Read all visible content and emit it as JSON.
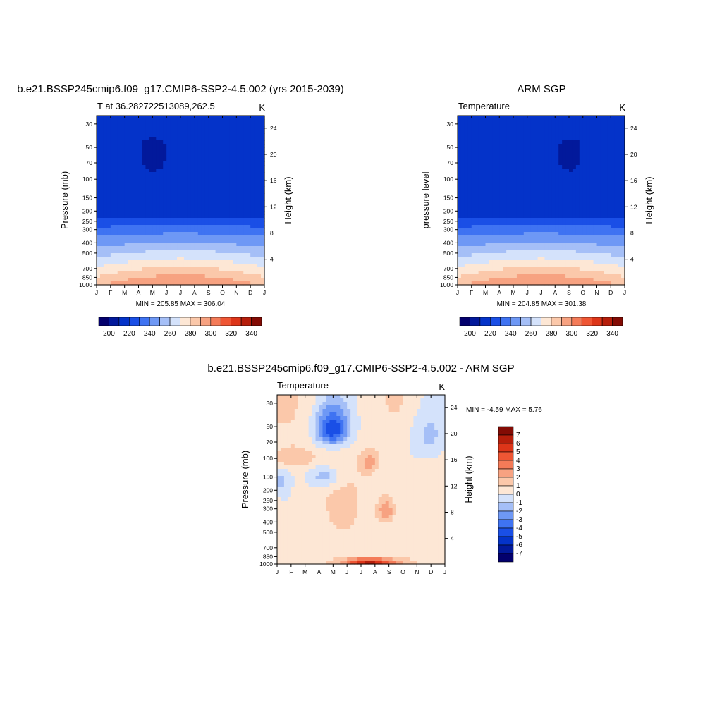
{
  "colors": {
    "temperature_scale": [
      "#03006d",
      "#02199b",
      "#0433c9",
      "#1a4fe6",
      "#3f73f2",
      "#6e98f5",
      "#a5bff7",
      "#d4e2fb",
      "#fde7d5",
      "#fbc8aa",
      "#f7a281",
      "#f47b58",
      "#ef5634",
      "#dd3519",
      "#b61e0b",
      "#830b04"
    ],
    "difference_scale": [
      "#03006d",
      "#02199b",
      "#0433c9",
      "#1a4fe6",
      "#3f73f2",
      "#6e98f5",
      "#a5bff7",
      "#d4e2fb",
      "#fde7d5",
      "#fbc8aa",
      "#f7a281",
      "#f47b58",
      "#ef5634",
      "#dd3519",
      "#b61e0b",
      "#830b04"
    ],
    "axis": "#000000",
    "background": "#ffffff"
  },
  "chart_data": [
    {
      "type": "contour",
      "title": "b.e21.BSSP245cmip6.f09_g17.CMIP6-SSP2-4.5.002 (yrs 2015-2039)",
      "left_string": "T at 36.282722513089,262.5",
      "right_string": "K",
      "xlabel": "",
      "ylabel": "Pressure (mb)",
      "ylabel_right": "Height (km)",
      "x_ticks": [
        "J",
        "F",
        "M",
        "A",
        "M",
        "J",
        "J",
        "A",
        "S",
        "O",
        "N",
        "D",
        "J"
      ],
      "y_ticks": [
        30,
        50,
        70,
        100,
        150,
        200,
        250,
        300,
        400,
        500,
        700,
        850,
        1000
      ],
      "y_ticks_right": [
        24,
        20,
        16,
        12,
        8,
        4
      ],
      "ylim": [
        1000,
        25
      ],
      "min_max_text": "MIN = 205.85 MAX = 306.04",
      "colorbar_labels": [
        "200",
        "220",
        "240",
        "260",
        "280",
        "300",
        "320",
        "340"
      ]
    },
    {
      "type": "contour",
      "title": "ARM SGP",
      "left_string": "Temperature",
      "right_string": "K",
      "xlabel": "",
      "ylabel": "pressure level",
      "ylabel_right": "Height (km)",
      "x_ticks": [
        "J",
        "F",
        "M",
        "A",
        "M",
        "J",
        "J",
        "A",
        "S",
        "O",
        "N",
        "D",
        "J"
      ],
      "y_ticks": [
        30,
        50,
        70,
        100,
        150,
        200,
        250,
        300,
        400,
        500,
        700,
        850,
        1000
      ],
      "y_ticks_right": [
        24,
        20,
        16,
        12,
        8,
        4
      ],
      "ylim": [
        1000,
        25
      ],
      "min_max_text": "MIN = 204.85 MAX = 301.38",
      "colorbar_labels": [
        "200",
        "220",
        "240",
        "260",
        "280",
        "300",
        "320",
        "340"
      ]
    },
    {
      "type": "contour",
      "title": "b.e21.BSSP245cmip6.f09_g17.CMIP6-SSP2-4.5.002 - ARM SGP",
      "left_string": "Temperature",
      "right_string": "K",
      "xlabel": "",
      "ylabel": "Pressure (mb)",
      "ylabel_right": "Height (km)",
      "x_ticks": [
        "J",
        "F",
        "M",
        "A",
        "M",
        "J",
        "J",
        "A",
        "S",
        "O",
        "N",
        "D",
        "J"
      ],
      "y_ticks": [
        30,
        50,
        70,
        100,
        150,
        200,
        250,
        300,
        400,
        500,
        700,
        850,
        1000
      ],
      "y_ticks_right": [
        24,
        20,
        16,
        12,
        8,
        4
      ],
      "ylim": [
        1000,
        25
      ],
      "min_max_text": "MIN =  -4.59 MAX =   5.76",
      "colorbar_labels": [
        "7",
        "6",
        "5",
        "4",
        "3",
        "2",
        "1",
        "0",
        "-1",
        "-2",
        "-3",
        "-4",
        "-5",
        "-6",
        "-7"
      ]
    }
  ]
}
